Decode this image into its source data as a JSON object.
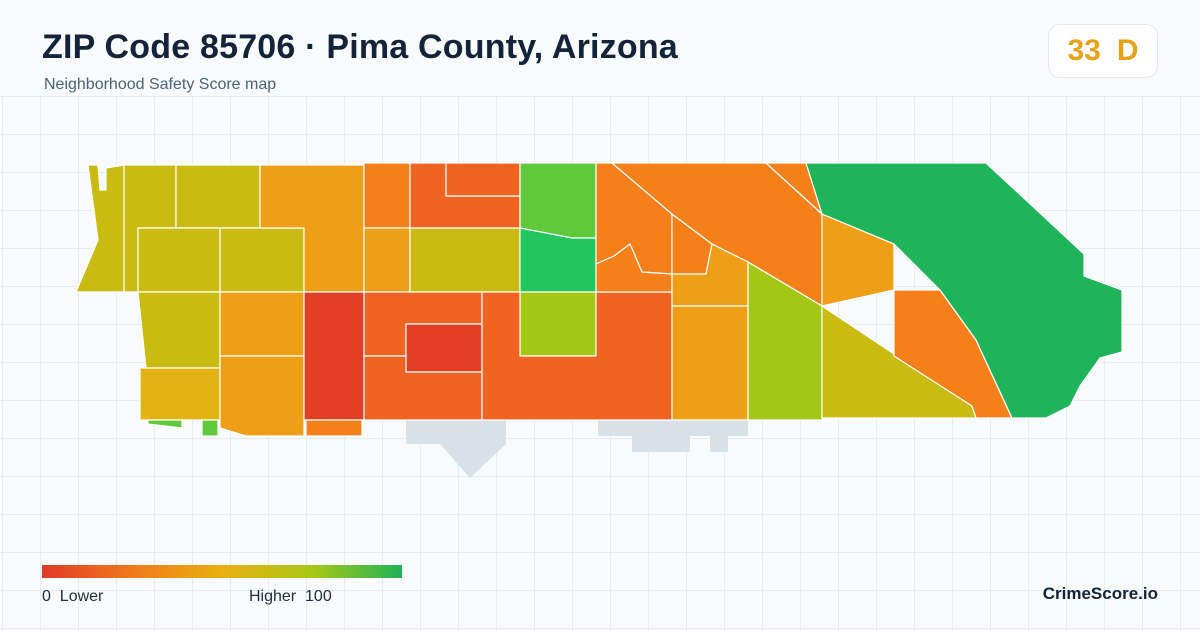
{
  "header": {
    "title": "ZIP Code 85706 · Pima County, Arizona",
    "subtitle": "Neighborhood Safety Score map"
  },
  "score": {
    "value": "33",
    "grade": "D",
    "color": "#e8a21a"
  },
  "legend": {
    "min_label": "0  Lower",
    "max_label": "Higher  100",
    "colors": [
      "#e03a27",
      "#f07a1a",
      "#e9b010",
      "#a8c814",
      "#1fb25a"
    ]
  },
  "brand": "CrimeScore.io",
  "map": {
    "empty_region_color": "#d9e1e8",
    "region_colors": {
      "low": "#e23e25",
      "low_mid": "#f06321",
      "mid_low": "#f5801a",
      "mid": "#ef9f16",
      "mid_high": "#e3b213",
      "olive": "#c9bb12",
      "yellow_green": "#a3c714",
      "green": "#5ec93a",
      "green_strong": "#22c55e",
      "green_dark": "#1fb45a"
    }
  }
}
